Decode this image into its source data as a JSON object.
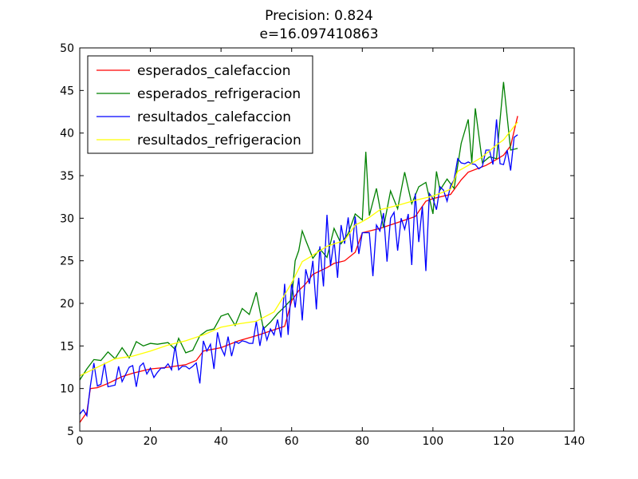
{
  "chart_data": {
    "type": "line",
    "title": "Precision: 0.824",
    "subtitle": "e=16.097410863",
    "xlabel": "",
    "ylabel": "",
    "xlim": [
      0,
      140
    ],
    "ylim": [
      5,
      50
    ],
    "xticks": [
      "0",
      "20",
      "40",
      "60",
      "80",
      "100",
      "120",
      "140"
    ],
    "yticks": [
      "5",
      "10",
      "15",
      "20",
      "25",
      "30",
      "35",
      "40",
      "45",
      "50"
    ],
    "grid": false,
    "legend_position": "top-left",
    "series": [
      {
        "name": "esperados_calefaccion",
        "color": "#ff0000",
        "points": [
          [
            0,
            6.0
          ],
          [
            2,
            7.2
          ],
          [
            3,
            10.0
          ],
          [
            5,
            10.1
          ],
          [
            8,
            10.6
          ],
          [
            10,
            11.0
          ],
          [
            12,
            11.4
          ],
          [
            15,
            11.8
          ],
          [
            18,
            12.1
          ],
          [
            20,
            12.3
          ],
          [
            25,
            12.5
          ],
          [
            30,
            12.8
          ],
          [
            33,
            13.3
          ],
          [
            35,
            14.4
          ],
          [
            40,
            14.8
          ],
          [
            45,
            15.6
          ],
          [
            50,
            16.2
          ],
          [
            55,
            16.9
          ],
          [
            58,
            17.3
          ],
          [
            60,
            20.3
          ],
          [
            62,
            21.5
          ],
          [
            64,
            22.3
          ],
          [
            66,
            23.4
          ],
          [
            70,
            24.2
          ],
          [
            72,
            24.7
          ],
          [
            75,
            25.0
          ],
          [
            78,
            26.0
          ],
          [
            80,
            28.3
          ],
          [
            85,
            28.8
          ],
          [
            90,
            29.5
          ],
          [
            95,
            30.2
          ],
          [
            98,
            32.0
          ],
          [
            100,
            32.3
          ],
          [
            105,
            32.8
          ],
          [
            108,
            34.5
          ],
          [
            110,
            35.4
          ],
          [
            115,
            36.2
          ],
          [
            118,
            36.9
          ],
          [
            120,
            37.4
          ],
          [
            122,
            38.5
          ],
          [
            124,
            42.0
          ]
        ]
      },
      {
        "name": "esperados_refrigeracion",
        "color": "#008000",
        "points": [
          [
            0,
            11.0
          ],
          [
            2,
            12.3
          ],
          [
            4,
            13.4
          ],
          [
            6,
            13.3
          ],
          [
            8,
            14.3
          ],
          [
            10,
            13.5
          ],
          [
            12,
            14.8
          ],
          [
            14,
            13.6
          ],
          [
            16,
            15.5
          ],
          [
            18,
            15.0
          ],
          [
            20,
            15.3
          ],
          [
            22,
            15.2
          ],
          [
            25,
            15.4
          ],
          [
            27,
            14.6
          ],
          [
            28,
            15.9
          ],
          [
            30,
            14.2
          ],
          [
            32,
            14.5
          ],
          [
            34,
            16.2
          ],
          [
            36,
            16.8
          ],
          [
            38,
            17.0
          ],
          [
            40,
            18.5
          ],
          [
            42,
            18.8
          ],
          [
            44,
            17.4
          ],
          [
            46,
            19.4
          ],
          [
            48,
            18.7
          ],
          [
            50,
            21.3
          ],
          [
            52,
            17.0
          ],
          [
            54,
            17.8
          ],
          [
            56,
            18.8
          ],
          [
            58,
            19.6
          ],
          [
            60,
            20.5
          ],
          [
            61,
            25.0
          ],
          [
            62,
            26.2
          ],
          [
            63,
            28.5
          ],
          [
            64,
            27.4
          ],
          [
            66,
            25.3
          ],
          [
            68,
            26.4
          ],
          [
            70,
            25.4
          ],
          [
            72,
            28.8
          ],
          [
            74,
            27.0
          ],
          [
            76,
            28.2
          ],
          [
            78,
            30.5
          ],
          [
            80,
            29.8
          ],
          [
            81,
            37.8
          ],
          [
            82,
            30.3
          ],
          [
            84,
            33.5
          ],
          [
            86,
            28.9
          ],
          [
            88,
            33.2
          ],
          [
            90,
            31.1
          ],
          [
            92,
            35.4
          ],
          [
            94,
            31.7
          ],
          [
            96,
            33.7
          ],
          [
            98,
            34.2
          ],
          [
            100,
            30.5
          ],
          [
            101,
            35.5
          ],
          [
            102,
            33.3
          ],
          [
            104,
            34.6
          ],
          [
            106,
            33.5
          ],
          [
            108,
            38.8
          ],
          [
            110,
            41.6
          ],
          [
            111,
            36.5
          ],
          [
            112,
            42.9
          ],
          [
            114,
            36.5
          ],
          [
            116,
            37.2
          ],
          [
            118,
            37.0
          ],
          [
            120,
            46.0
          ],
          [
            122,
            38.0
          ],
          [
            124,
            38.2
          ]
        ]
      },
      {
        "name": "resultados_calefaccion",
        "color": "#0000ff",
        "points": [
          [
            0,
            7.0
          ],
          [
            1,
            7.5
          ],
          [
            2,
            6.8
          ],
          [
            3,
            10.3
          ],
          [
            4,
            13.0
          ],
          [
            5,
            10.3
          ],
          [
            6,
            10.5
          ],
          [
            7,
            13.0
          ],
          [
            8,
            10.2
          ],
          [
            10,
            10.4
          ],
          [
            11,
            12.6
          ],
          [
            12,
            10.8
          ],
          [
            14,
            12.5
          ],
          [
            15,
            12.7
          ],
          [
            16,
            10.2
          ],
          [
            17,
            12.6
          ],
          [
            18,
            13.0
          ],
          [
            19,
            11.7
          ],
          [
            20,
            12.4
          ],
          [
            21,
            11.3
          ],
          [
            22,
            11.9
          ],
          [
            23,
            12.4
          ],
          [
            24,
            12.4
          ],
          [
            25,
            12.9
          ],
          [
            26,
            12.2
          ],
          [
            27,
            15.0
          ],
          [
            28,
            12.2
          ],
          [
            29,
            12.6
          ],
          [
            30,
            12.6
          ],
          [
            31,
            12.3
          ],
          [
            32,
            12.6
          ],
          [
            33,
            13.0
          ],
          [
            34,
            10.6
          ],
          [
            35,
            15.6
          ],
          [
            36,
            14.4
          ],
          [
            37,
            15.2
          ],
          [
            38,
            12.3
          ],
          [
            39,
            16.6
          ],
          [
            40,
            14.8
          ],
          [
            41,
            13.9
          ],
          [
            42,
            16.1
          ],
          [
            43,
            13.8
          ],
          [
            44,
            15.5
          ],
          [
            45,
            15.3
          ],
          [
            46,
            15.6
          ],
          [
            47,
            15.5
          ],
          [
            48,
            15.3
          ],
          [
            49,
            15.3
          ],
          [
            50,
            17.9
          ],
          [
            51,
            15.0
          ],
          [
            52,
            17.3
          ],
          [
            53,
            15.7
          ],
          [
            54,
            17.0
          ],
          [
            55,
            16.3
          ],
          [
            56,
            18.1
          ],
          [
            57,
            16.0
          ],
          [
            58,
            22.3
          ],
          [
            59,
            16.3
          ],
          [
            60,
            22.5
          ],
          [
            61,
            19.5
          ],
          [
            62,
            23.0
          ],
          [
            63,
            18.0
          ],
          [
            64,
            24.0
          ],
          [
            65,
            22.3
          ],
          [
            66,
            25.0
          ],
          [
            67,
            19.3
          ],
          [
            68,
            26.7
          ],
          [
            69,
            22.0
          ],
          [
            70,
            30.4
          ],
          [
            71,
            24.4
          ],
          [
            72,
            27.4
          ],
          [
            73,
            23.0
          ],
          [
            74,
            29.2
          ],
          [
            75,
            27.0
          ],
          [
            76,
            30.1
          ],
          [
            77,
            26.0
          ],
          [
            78,
            30.2
          ],
          [
            79,
            25.8
          ],
          [
            80,
            28.3
          ],
          [
            82,
            28.3
          ],
          [
            83,
            23.2
          ],
          [
            84,
            29.2
          ],
          [
            85,
            28.5
          ],
          [
            86,
            30.6
          ],
          [
            87,
            24.9
          ],
          [
            88,
            30.0
          ],
          [
            89,
            30.7
          ],
          [
            90,
            26.2
          ],
          [
            91,
            30.0
          ],
          [
            92,
            28.7
          ],
          [
            93,
            30.5
          ],
          [
            94,
            24.5
          ],
          [
            95,
            32.9
          ],
          [
            96,
            27.2
          ],
          [
            97,
            31.4
          ],
          [
            98,
            23.8
          ],
          [
            99,
            32.9
          ],
          [
            100,
            32.3
          ],
          [
            101,
            31.0
          ],
          [
            102,
            33.7
          ],
          [
            103,
            33.3
          ],
          [
            104,
            32.0
          ],
          [
            105,
            33.8
          ],
          [
            106,
            34.5
          ],
          [
            107,
            37.0
          ],
          [
            108,
            36.5
          ],
          [
            109,
            36.4
          ],
          [
            110,
            36.6
          ],
          [
            111,
            36.4
          ],
          [
            112,
            36.3
          ],
          [
            113,
            35.8
          ],
          [
            114,
            36.1
          ],
          [
            115,
            38.0
          ],
          [
            116,
            38.0
          ],
          [
            117,
            36.3
          ],
          [
            118,
            41.6
          ],
          [
            119,
            36.4
          ],
          [
            120,
            36.3
          ],
          [
            121,
            38.0
          ],
          [
            122,
            35.6
          ],
          [
            123,
            39.5
          ],
          [
            124,
            39.8
          ]
        ]
      },
      {
        "name": "resultados_refrigeracion",
        "color": "#ffff00",
        "points": [
          [
            0,
            11.5
          ],
          [
            5,
            12.5
          ],
          [
            10,
            13.5
          ],
          [
            15,
            13.8
          ],
          [
            20,
            14.4
          ],
          [
            25,
            15.1
          ],
          [
            30,
            15.6
          ],
          [
            35,
            16.3
          ],
          [
            40,
            17.2
          ],
          [
            45,
            17.6
          ],
          [
            50,
            17.9
          ],
          [
            55,
            19.0
          ],
          [
            58,
            21.0
          ],
          [
            60,
            22.4
          ],
          [
            63,
            24.9
          ],
          [
            65,
            25.4
          ],
          [
            70,
            26.7
          ],
          [
            75,
            27.4
          ],
          [
            78,
            29.2
          ],
          [
            80,
            29.6
          ],
          [
            82,
            30.1
          ],
          [
            85,
            31.0
          ],
          [
            90,
            31.5
          ],
          [
            95,
            32.1
          ],
          [
            100,
            32.6
          ],
          [
            105,
            33.4
          ],
          [
            107,
            35.5
          ],
          [
            110,
            36.2
          ],
          [
            114,
            37.2
          ],
          [
            118,
            38.6
          ],
          [
            120,
            39.2
          ],
          [
            124,
            41.3
          ]
        ]
      }
    ]
  }
}
